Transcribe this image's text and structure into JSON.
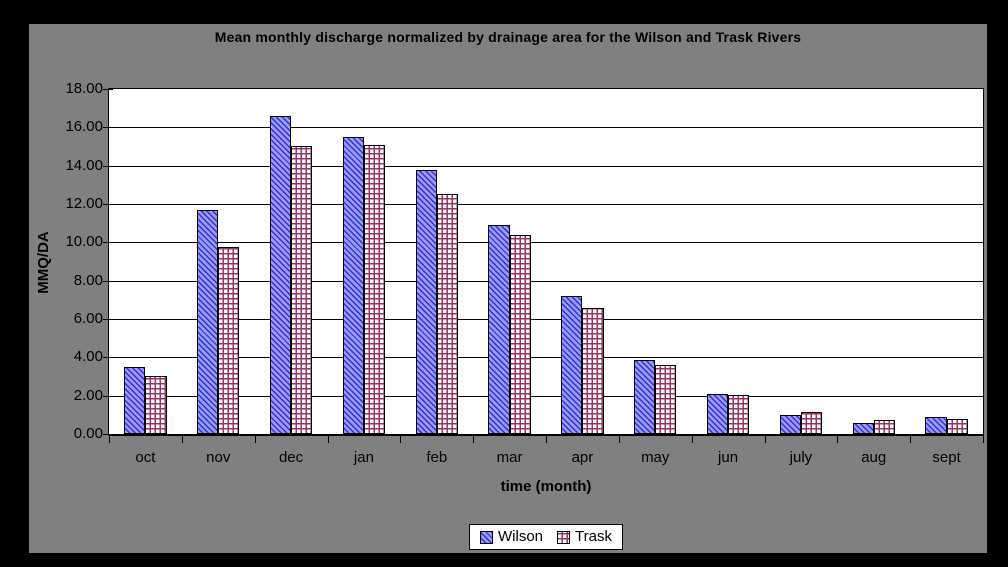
{
  "style": {
    "page_background": "#000000",
    "chart_frame_background": "#808080",
    "plot_background": "#FFFFFF",
    "gridline_color": "#000000",
    "text_color": "#000000"
  },
  "chart_data": {
    "type": "bar",
    "title": "Mean monthly discharge normalized by drainage area for the Wilson and Trask Rivers",
    "xlabel": "time (month)",
    "ylabel": "MMQ/DA",
    "ylim": [
      0,
      18
    ],
    "ytick_step": 2,
    "ytick_labels": [
      "0.00",
      "2.00",
      "4.00",
      "6.00",
      "8.00",
      "10.00",
      "12.00",
      "14.00",
      "16.00",
      "18.00"
    ],
    "grid": true,
    "legend_position": "bottom-center",
    "categories": [
      "oct",
      "nov",
      "dec",
      "jan",
      "feb",
      "mar",
      "apr",
      "may",
      "jun",
      "july",
      "aug",
      "sept"
    ],
    "series": [
      {
        "name": "Wilson",
        "pattern": "diagonal-down",
        "fill": "#9999FF",
        "hatch_color": "#3333CC",
        "values": [
          3.5,
          11.7,
          16.6,
          15.5,
          13.8,
          10.9,
          7.2,
          3.85,
          2.1,
          1.0,
          0.6,
          0.9
        ]
      },
      {
        "name": "Trask",
        "pattern": "grid",
        "fill": "#FFFFFF",
        "hatch_color": "#993366",
        "values": [
          3.05,
          9.75,
          15.05,
          15.1,
          12.5,
          10.4,
          6.6,
          3.6,
          2.05,
          1.15,
          0.75,
          0.8
        ]
      }
    ]
  }
}
